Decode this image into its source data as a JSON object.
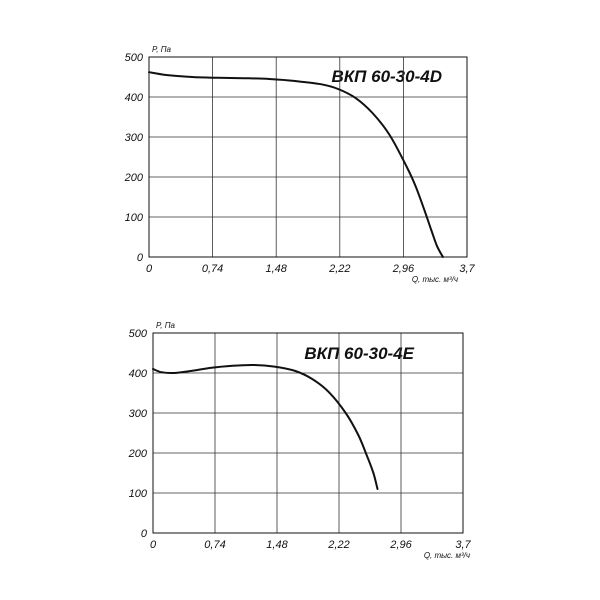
{
  "chart_data": [
    {
      "type": "line",
      "title": "ВКП 60-30-4D",
      "ylabel": "P, Па",
      "xlabel": "Q, тыс. м³/ч",
      "x_ticks": [
        "0",
        "0,74",
        "1,48",
        "2,22",
        "2,96",
        "3,7"
      ],
      "y_ticks": [
        "0",
        "100",
        "200",
        "300",
        "400",
        "500"
      ],
      "xlim": [
        0,
        3.7
      ],
      "ylim": [
        0,
        500
      ],
      "grid": true,
      "series": [
        {
          "x": [
            0,
            0.2,
            0.5,
            0.8,
            1.1,
            1.4,
            1.7,
            2.0,
            2.2,
            2.4,
            2.6,
            2.8,
            3.0,
            3.1,
            3.2,
            3.28,
            3.35,
            3.42
          ],
          "y": [
            462,
            455,
            450,
            448,
            447,
            445,
            440,
            432,
            420,
            398,
            360,
            305,
            225,
            178,
            120,
            70,
            28,
            0
          ]
        }
      ]
    },
    {
      "type": "line",
      "title": "ВКП 60-30-4E",
      "ylabel": "P, Па",
      "xlabel": "Q, тыс. м³/ч",
      "x_ticks": [
        "0",
        "0,74",
        "1,48",
        "2,22",
        "2,96",
        "3,7"
      ],
      "y_ticks": [
        "0",
        "100",
        "200",
        "300",
        "400",
        "500"
      ],
      "xlim": [
        0,
        3.7
      ],
      "ylim": [
        0,
        500
      ],
      "grid": true,
      "series": [
        {
          "x": [
            0,
            0.1,
            0.25,
            0.45,
            0.7,
            0.95,
            1.2,
            1.45,
            1.7,
            1.9,
            2.1,
            2.3,
            2.45,
            2.55,
            2.63,
            2.68
          ],
          "y": [
            410,
            402,
            400,
            405,
            413,
            418,
            420,
            416,
            405,
            385,
            352,
            300,
            245,
            195,
            150,
            110
          ]
        }
      ]
    }
  ]
}
